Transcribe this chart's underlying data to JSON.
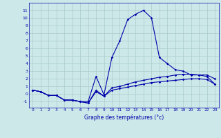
{
  "xlabel": "Graphe des températures (°c)",
  "background_color": "#cce8e8",
  "grid_color": "#aacccc",
  "line_color": "#0000aa",
  "x_hours": [
    0,
    1,
    2,
    3,
    4,
    5,
    6,
    7,
    8,
    9,
    10,
    11,
    12,
    13,
    14,
    15,
    16,
    17,
    18,
    19,
    20,
    21,
    22,
    23
  ],
  "line1": [
    0.5,
    0.3,
    -0.2,
    -0.2,
    -0.8,
    -0.8,
    -1.0,
    -1.0,
    2.3,
    -0.1,
    4.8,
    7.0,
    9.8,
    10.5,
    11.0,
    10.0,
    4.8,
    4.0,
    3.2,
    3.0,
    2.5,
    2.5,
    2.3,
    1.3
  ],
  "line2": [
    0.5,
    0.3,
    -0.2,
    -0.2,
    -0.8,
    -0.8,
    -1.0,
    -1.2,
    0.5,
    -0.3,
    0.8,
    1.0,
    1.3,
    1.6,
    1.8,
    2.0,
    2.2,
    2.3,
    2.5,
    2.6,
    2.6,
    2.5,
    2.5,
    2.0
  ],
  "line3": [
    0.5,
    0.3,
    -0.2,
    -0.2,
    -0.8,
    -0.8,
    -1.0,
    -1.2,
    0.3,
    -0.3,
    0.5,
    0.7,
    0.9,
    1.1,
    1.3,
    1.5,
    1.6,
    1.7,
    1.8,
    1.9,
    2.0,
    2.0,
    1.9,
    1.3
  ],
  "ylim": [
    -1.8,
    12.0
  ],
  "yticks": [
    -1,
    0,
    1,
    2,
    3,
    4,
    5,
    6,
    7,
    8,
    9,
    10,
    11
  ],
  "xticks": [
    0,
    1,
    2,
    3,
    4,
    5,
    6,
    7,
    8,
    9,
    10,
    11,
    12,
    13,
    14,
    15,
    16,
    17,
    18,
    19,
    20,
    21,
    22,
    23
  ]
}
